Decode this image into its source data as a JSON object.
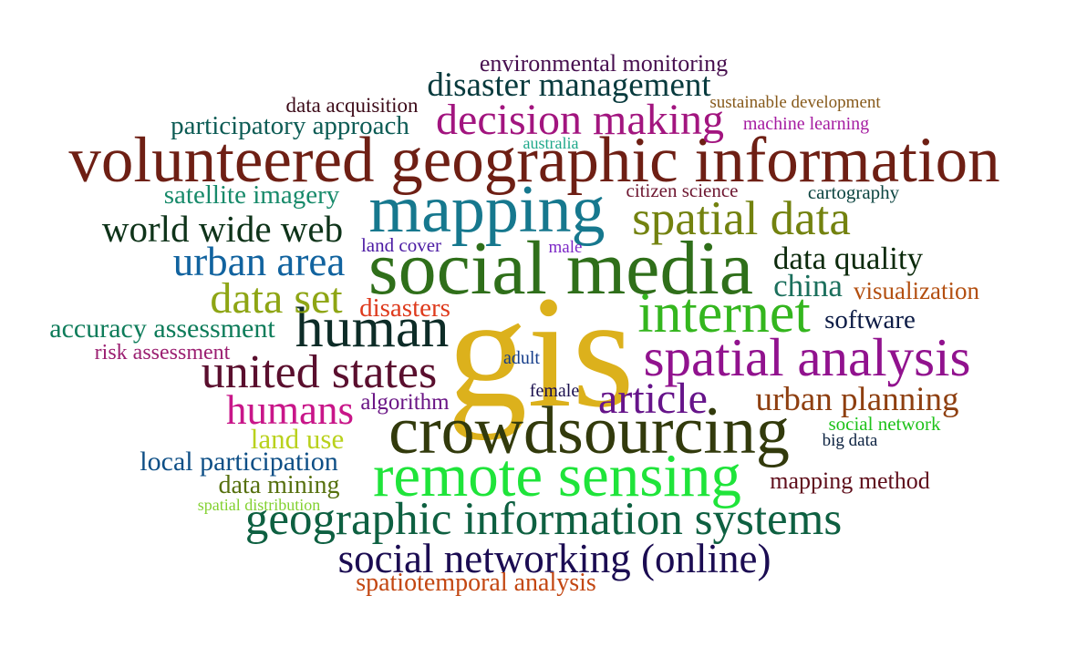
{
  "words": [
    {
      "text": "gis",
      "color": "#dcb11c"
    },
    {
      "text": "volunteered geographic information",
      "color": "#6e1f14"
    },
    {
      "text": "social media",
      "color": "#2f6f1a"
    },
    {
      "text": "crowdsourcing",
      "color": "#323a0c"
    },
    {
      "text": "remote sensing",
      "color": "#1fe43a"
    },
    {
      "text": "mapping",
      "color": "#16788e"
    },
    {
      "text": "geographic information systems",
      "color": "#0e6041"
    },
    {
      "text": "internet",
      "color": "#34b61e"
    },
    {
      "text": "spatial analysis",
      "color": "#91128e"
    },
    {
      "text": "human",
      "color": "#0d2c27"
    },
    {
      "text": "united states",
      "color": "#5a0f2e"
    },
    {
      "text": "decision making",
      "color": "#a2157f"
    },
    {
      "text": "spatial data",
      "color": "#73820f"
    },
    {
      "text": "social networking (online)",
      "color": "#1b0c52"
    },
    {
      "text": "data set",
      "color": "#8ea514"
    },
    {
      "text": "urban area",
      "color": "#11639f"
    },
    {
      "text": "article",
      "color": "#66148a"
    },
    {
      "text": "humans",
      "color": "#c81689"
    },
    {
      "text": "world wide web",
      "color": "#0e3319"
    },
    {
      "text": "disaster management",
      "color": "#073a3d"
    },
    {
      "text": "urban planning",
      "color": "#8e3f10"
    },
    {
      "text": "data quality",
      "color": "#0c2a0c"
    },
    {
      "text": "china",
      "color": "#1b6f5c"
    },
    {
      "text": "accuracy assessment",
      "color": "#0e7c5a"
    },
    {
      "text": "local participation",
      "color": "#0e4f86"
    },
    {
      "text": "participatory approach",
      "color": "#0d5c55"
    },
    {
      "text": "land use",
      "color": "#b9d11c"
    },
    {
      "text": "data mining",
      "color": "#56700e"
    },
    {
      "text": "satellite imagery",
      "color": "#178a6a"
    },
    {
      "text": "software",
      "color": "#0d1c46"
    },
    {
      "text": "visualization",
      "color": "#b34f10"
    },
    {
      "text": "disasters",
      "color": "#de3a1c"
    },
    {
      "text": "spatiotemporal analysis",
      "color": "#c34712"
    },
    {
      "text": "environmental monitoring",
      "color": "#470f4f"
    },
    {
      "text": "mapping method",
      "color": "#5f0e1b"
    },
    {
      "text": "algorithm",
      "color": "#6a1585"
    },
    {
      "text": "risk assessment",
      "color": "#9b1f71"
    },
    {
      "text": "data acquisition",
      "color": "#3d0b19"
    },
    {
      "text": "social network",
      "color": "#1ec21a"
    },
    {
      "text": "land cover",
      "color": "#4b1aa3"
    },
    {
      "text": "citizen science",
      "color": "#6e1731"
    },
    {
      "text": "cartography",
      "color": "#0d4541"
    },
    {
      "text": "machine learning",
      "color": "#a51ba1"
    },
    {
      "text": "sustainable development",
      "color": "#86591a"
    },
    {
      "text": "female",
      "color": "#1a0f4e"
    },
    {
      "text": "adult",
      "color": "#153d8a"
    },
    {
      "text": "big data",
      "color": "#0b2140"
    },
    {
      "text": "spatial distribution",
      "color": "#82d130"
    },
    {
      "text": "male",
      "color": "#7c27c7"
    },
    {
      "text": "australia",
      "color": "#1fa88a"
    }
  ]
}
